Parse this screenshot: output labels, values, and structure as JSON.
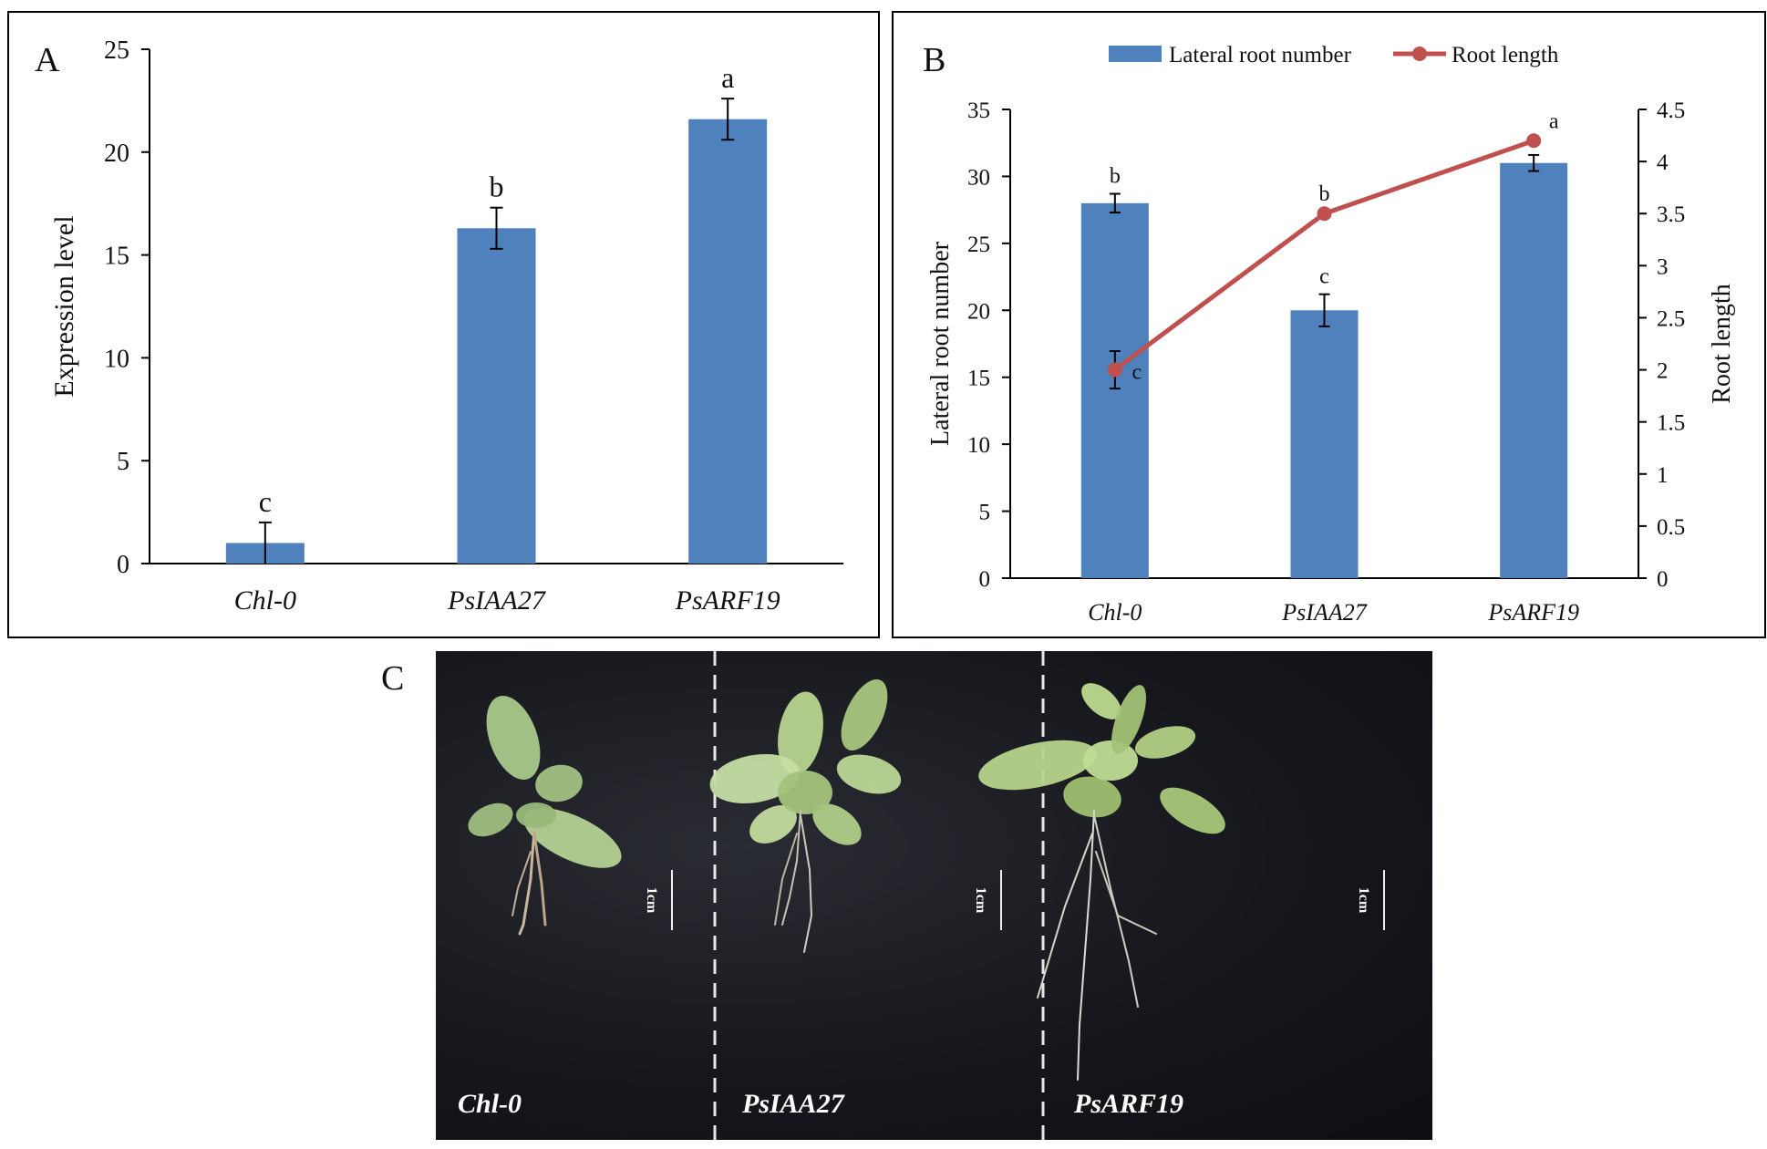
{
  "panels": {
    "a_label": "A",
    "b_label": "B",
    "c_label": "C"
  },
  "chart_data": [
    {
      "id": "A",
      "type": "bar",
      "categories": [
        "Chl-0",
        "PsIAA27",
        "PsARF19"
      ],
      "values": [
        1.0,
        16.3,
        21.6
      ],
      "errors": [
        1.0,
        1.0,
        1.0
      ],
      "significance": [
        "c",
        "b",
        "a"
      ],
      "xlabel": "",
      "ylabel": "Expression level",
      "ylim": [
        0,
        25
      ],
      "yticks": [
        0,
        5,
        10,
        15,
        20,
        25
      ],
      "bar_color": "#4f81bd"
    },
    {
      "id": "B",
      "type": "bar+line",
      "categories": [
        "Chl-0",
        "PsIAA27",
        "PsARF19"
      ],
      "legend": [
        "Lateral root number",
        "Root length"
      ],
      "legend_position": "top-center",
      "series": [
        {
          "name": "Lateral root number",
          "type": "bar",
          "axis": "left",
          "values": [
            28,
            20,
            31
          ],
          "errors": [
            0.7,
            1.2,
            0.6
          ],
          "significance": [
            "b",
            "c",
            "a"
          ],
          "color": "#4f81bd"
        },
        {
          "name": "Root length",
          "type": "line",
          "axis": "right",
          "values": [
            2.0,
            3.5,
            4.2
          ],
          "errors": [
            0.18,
            0.0,
            0.0
          ],
          "significance": [
            "c",
            "b",
            "a"
          ],
          "color": "#c0504d"
        }
      ],
      "ylabel_left": "Lateral root number",
      "ylabel_right": "Root length",
      "ylim_left": [
        0,
        35
      ],
      "ylim_right": [
        0,
        4.5
      ],
      "yticks_left": [
        0,
        5,
        10,
        15,
        20,
        25,
        30,
        35
      ],
      "yticks_right": [
        "0",
        "0.5",
        "1",
        "1.5",
        "2",
        "2.5",
        "3",
        "3.5",
        "4",
        "4.5"
      ]
    }
  ],
  "photo": {
    "labels": [
      "Chl-0",
      "PsIAA27",
      "PsARF19"
    ],
    "scale_label": "1cm"
  }
}
